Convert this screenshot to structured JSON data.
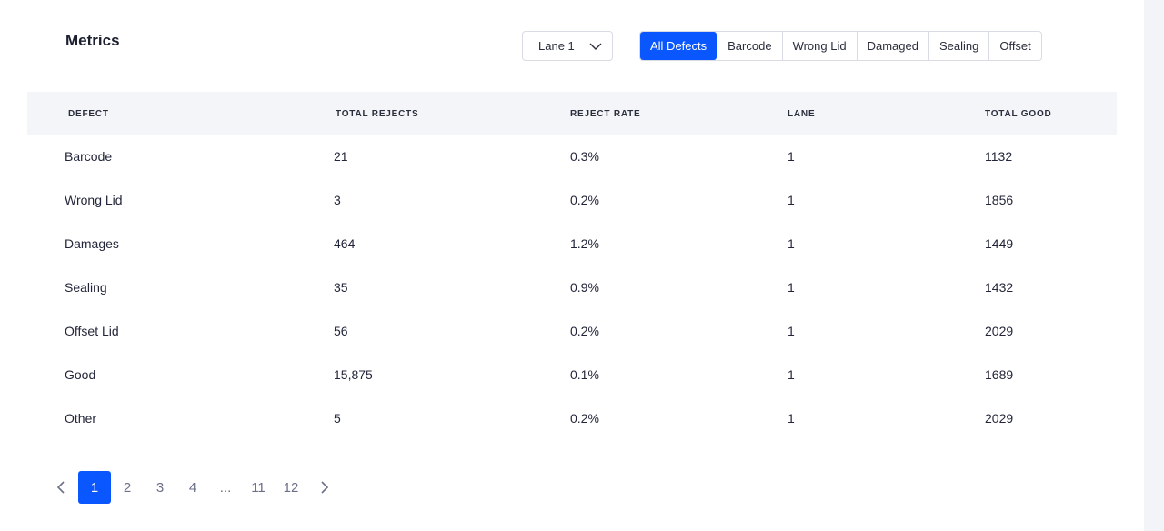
{
  "header": {
    "title": "Metrics"
  },
  "lane_select": {
    "value": "Lane 1",
    "icon": "chevron-down-icon"
  },
  "filters": [
    {
      "label": "All Defects",
      "active": true
    },
    {
      "label": "Barcode",
      "active": false
    },
    {
      "label": "Wrong Lid",
      "active": false
    },
    {
      "label": "Damaged",
      "active": false
    },
    {
      "label": "Sealing",
      "active": false
    },
    {
      "label": "Offset",
      "active": false
    }
  ],
  "table": {
    "columns": [
      "DEFECT",
      "TOTAL REJECTS",
      "REJECT RATE",
      "LANE",
      "TOTAL GOOD"
    ],
    "rows": [
      [
        "Barcode",
        "21",
        "0.3%",
        "1",
        "1132"
      ],
      [
        "Wrong Lid",
        "3",
        "0.2%",
        "1",
        "1856"
      ],
      [
        "Damages",
        "464",
        "1.2%",
        "1",
        "1449"
      ],
      [
        "Sealing",
        "35",
        "0.9%",
        "1",
        "1432"
      ],
      [
        "Offset Lid",
        "56",
        "0.2%",
        "1",
        "2029"
      ],
      [
        "Good",
        "15,875",
        "0.1%",
        "1",
        "1689"
      ],
      [
        "Other",
        "5",
        "0.2%",
        "1",
        "2029"
      ]
    ]
  },
  "pagination": {
    "prev_icon": "chevron-left-icon",
    "next_icon": "chevron-right-icon",
    "pages": [
      "1",
      "2",
      "3",
      "4",
      "...",
      "11",
      "12"
    ],
    "current": "1"
  },
  "colors": {
    "accent": "#0a57ff",
    "header_bg": "#f4f5f9"
  }
}
